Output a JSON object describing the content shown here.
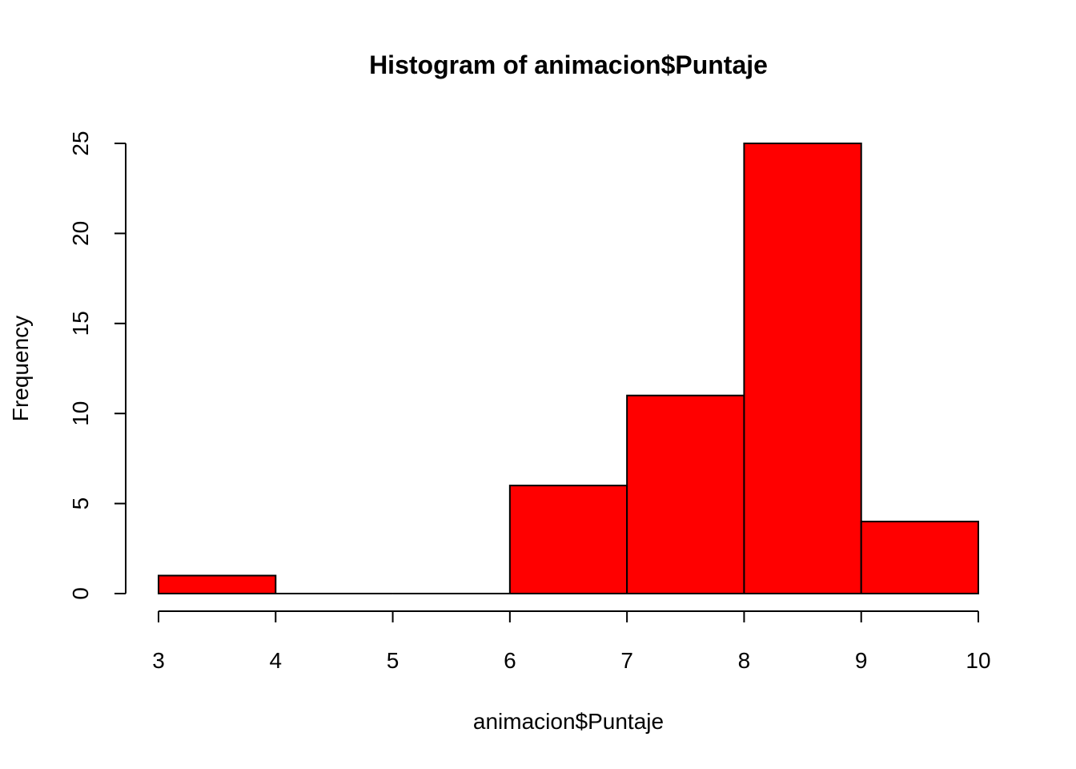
{
  "chart_data": {
    "type": "bar",
    "title": "Histogram of animacion$Puntaje",
    "xlabel": "animacion$Puntaje",
    "ylabel": "Frequency",
    "bins": [
      {
        "from": 3,
        "to": 4,
        "count": 1
      },
      {
        "from": 4,
        "to": 5,
        "count": 0
      },
      {
        "from": 5,
        "to": 6,
        "count": 0
      },
      {
        "from": 6,
        "to": 7,
        "count": 6
      },
      {
        "from": 7,
        "to": 8,
        "count": 11
      },
      {
        "from": 8,
        "to": 9,
        "count": 25
      },
      {
        "from": 9,
        "to": 10,
        "count": 4
      }
    ],
    "xticks": [
      "3",
      "4",
      "5",
      "6",
      "7",
      "8",
      "9",
      "10"
    ],
    "yticks": [
      "0",
      "5",
      "10",
      "15",
      "20",
      "25"
    ],
    "xlim": [
      3,
      10
    ],
    "ylim": [
      0,
      25
    ],
    "bar_color": "#ff0000",
    "grid": false
  }
}
